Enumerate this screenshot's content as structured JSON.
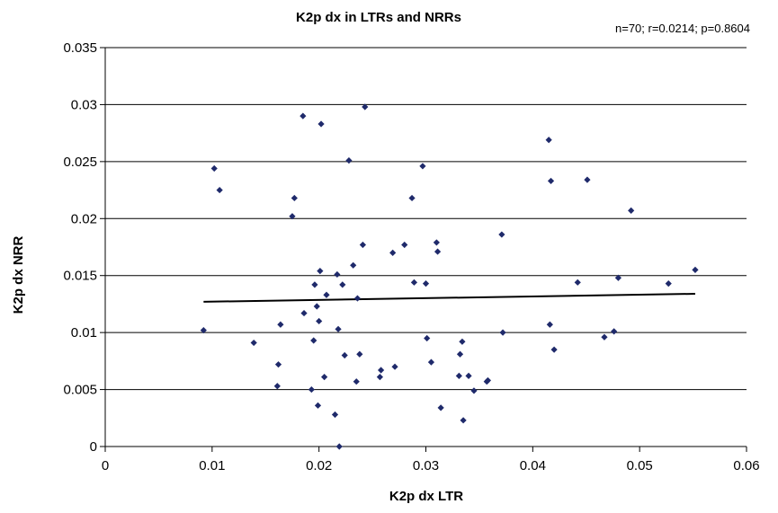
{
  "chart_data": {
    "type": "scatter",
    "title": "K2p dx in LTRs and NRRs",
    "annotation": "n=70; r=0.0214; p=0.8604",
    "xlabel": "K2p dx LTR",
    "ylabel": "K2p dx NRR",
    "xlim": [
      0,
      0.06
    ],
    "ylim": [
      0,
      0.035
    ],
    "xticks": [
      "0",
      "0.01",
      "0.02",
      "0.03",
      "0.04",
      "0.05",
      "0.06"
    ],
    "yticks": [
      "0",
      "0.005",
      "0.01",
      "0.015",
      "0.02",
      "0.025",
      "0.03",
      "0.035"
    ],
    "grid": "horizontal",
    "marker_color": "#1f2a6b",
    "points": [
      [
        0.0092,
        0.0102
      ],
      [
        0.0102,
        0.0244
      ],
      [
        0.0107,
        0.0225
      ],
      [
        0.0139,
        0.0091
      ],
      [
        0.0161,
        0.0053
      ],
      [
        0.0162,
        0.0072
      ],
      [
        0.0164,
        0.0107
      ],
      [
        0.0175,
        0.0202
      ],
      [
        0.0177,
        0.0218
      ],
      [
        0.0185,
        0.029
      ],
      [
        0.0186,
        0.0117
      ],
      [
        0.0193,
        0.005
      ],
      [
        0.0195,
        0.0093
      ],
      [
        0.0196,
        0.0142
      ],
      [
        0.0198,
        0.0123
      ],
      [
        0.0199,
        0.0036
      ],
      [
        0.02,
        0.011
      ],
      [
        0.0201,
        0.0154
      ],
      [
        0.0202,
        0.0283
      ],
      [
        0.0205,
        0.0061
      ],
      [
        0.0207,
        0.0133
      ],
      [
        0.0215,
        0.0028
      ],
      [
        0.0217,
        0.0151
      ],
      [
        0.0218,
        0.0103
      ],
      [
        0.0219,
        0.0
      ],
      [
        0.0222,
        0.0142
      ],
      [
        0.0224,
        0.008
      ],
      [
        0.0228,
        0.0251
      ],
      [
        0.0232,
        0.0159
      ],
      [
        0.0235,
        0.0057
      ],
      [
        0.0236,
        0.013
      ],
      [
        0.0238,
        0.0081
      ],
      [
        0.0241,
        0.0177
      ],
      [
        0.0243,
        0.0298
      ],
      [
        0.0257,
        0.0061
      ],
      [
        0.0258,
        0.0067
      ],
      [
        0.0269,
        0.017
      ],
      [
        0.0271,
        0.007
      ],
      [
        0.028,
        0.0177
      ],
      [
        0.0287,
        0.0218
      ],
      [
        0.0289,
        0.0144
      ],
      [
        0.0297,
        0.0246
      ],
      [
        0.03,
        0.0143
      ],
      [
        0.0301,
        0.0095
      ],
      [
        0.0305,
        0.0074
      ],
      [
        0.031,
        0.0179
      ],
      [
        0.0311,
        0.0171
      ],
      [
        0.0314,
        0.0034
      ],
      [
        0.0331,
        0.0062
      ],
      [
        0.0332,
        0.0081
      ],
      [
        0.0334,
        0.0092
      ],
      [
        0.0335,
        0.0023
      ],
      [
        0.034,
        0.0062
      ],
      [
        0.0345,
        0.0049
      ],
      [
        0.0357,
        0.0057
      ],
      [
        0.0358,
        0.0058
      ],
      [
        0.0371,
        0.0186
      ],
      [
        0.0372,
        0.01
      ],
      [
        0.0415,
        0.0269
      ],
      [
        0.0416,
        0.0107
      ],
      [
        0.0417,
        0.0233
      ],
      [
        0.042,
        0.0085
      ],
      [
        0.0442,
        0.0144
      ],
      [
        0.0451,
        0.0234
      ],
      [
        0.0467,
        0.0096
      ],
      [
        0.0476,
        0.0101
      ],
      [
        0.048,
        0.0148
      ],
      [
        0.0492,
        0.0207
      ],
      [
        0.0527,
        0.0143
      ],
      [
        0.0552,
        0.0155
      ]
    ],
    "trendline": {
      "x": [
        0.0092,
        0.0552
      ],
      "y": [
        0.0127,
        0.0134
      ]
    }
  }
}
